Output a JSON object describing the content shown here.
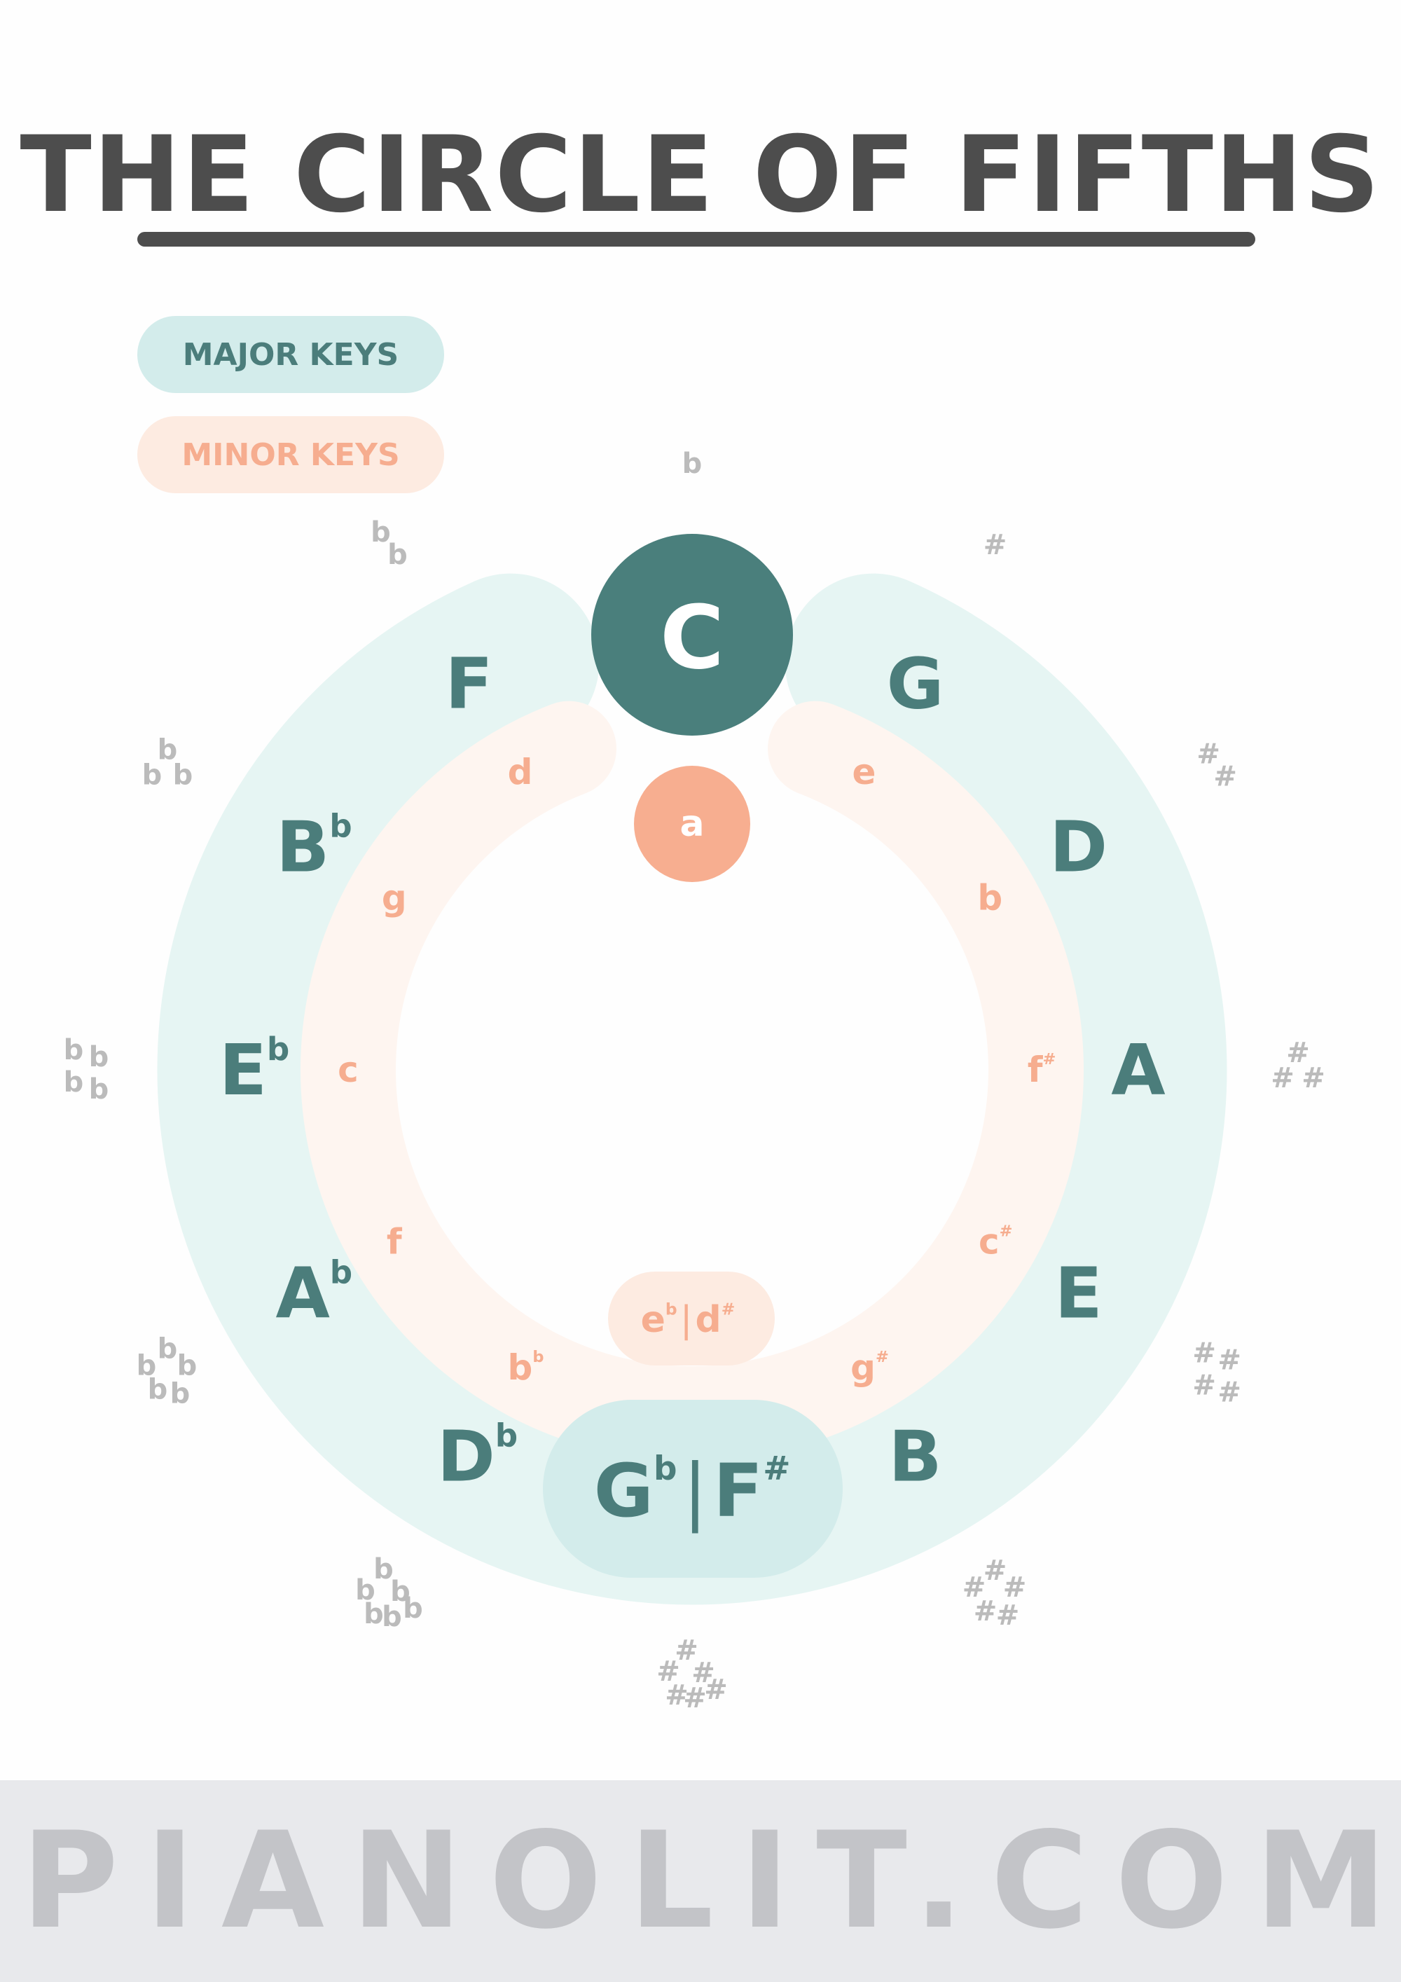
{
  "title": "THE CIRCLE OF FIFTHS",
  "legend": {
    "major": "MAJOR KEYS",
    "minor": "MINOR KEYS"
  },
  "colors": {
    "major_text": "#4b7d7b",
    "major_ring": "#e6f5f3",
    "major_highlight": "#d3eceb",
    "major_circle": "#4a7f7c",
    "minor_text": "#f6ad8f",
    "minor_ring": "#fef5f0",
    "minor_highlight": "#fdebe1",
    "minor_circle": "#f7ae90",
    "signature": "#bbbbbb",
    "title": "#4d4d4d",
    "footer_bg": "#e8e9ec",
    "footer_text": "#c3c4c8"
  },
  "major_keys": [
    {
      "id": "c",
      "letter": "C",
      "acc": ""
    },
    {
      "id": "g",
      "letter": "G",
      "acc": ""
    },
    {
      "id": "d",
      "letter": "D",
      "acc": ""
    },
    {
      "id": "a",
      "letter": "A",
      "acc": ""
    },
    {
      "id": "e",
      "letter": "E",
      "acc": ""
    },
    {
      "id": "b",
      "letter": "B",
      "acc": ""
    },
    {
      "id": "gb-fs",
      "letter": "G",
      "acc": "b",
      "letter2": "F",
      "acc2": "#"
    },
    {
      "id": "db",
      "letter": "D",
      "acc": "b"
    },
    {
      "id": "ab",
      "letter": "A",
      "acc": "b"
    },
    {
      "id": "eb",
      "letter": "E",
      "acc": "b"
    },
    {
      "id": "bb",
      "letter": "B",
      "acc": "b"
    },
    {
      "id": "f",
      "letter": "F",
      "acc": ""
    }
  ],
  "minor_keys": [
    {
      "id": "a",
      "letter": "a",
      "acc": ""
    },
    {
      "id": "e",
      "letter": "e",
      "acc": ""
    },
    {
      "id": "b",
      "letter": "b",
      "acc": ""
    },
    {
      "id": "fs",
      "letter": "f",
      "acc": "#"
    },
    {
      "id": "cs",
      "letter": "c",
      "acc": "#"
    },
    {
      "id": "gs",
      "letter": "g",
      "acc": "#"
    },
    {
      "id": "eb-ds",
      "letter": "e",
      "acc": "b",
      "letter2": "d",
      "acc2": "#"
    },
    {
      "id": "bb",
      "letter": "b",
      "acc": "b"
    },
    {
      "id": "f",
      "letter": "f",
      "acc": ""
    },
    {
      "id": "c",
      "letter": "c",
      "acc": ""
    },
    {
      "id": "g",
      "letter": "g",
      "acc": ""
    },
    {
      "id": "d",
      "letter": "d",
      "acc": ""
    }
  ],
  "signatures": [
    {
      "symbol": "#",
      "count": 1
    },
    {
      "symbol": "#",
      "count": 2
    },
    {
      "symbol": "#",
      "count": 3
    },
    {
      "symbol": "#",
      "count": 4
    },
    {
      "symbol": "#",
      "count": 5
    },
    {
      "symbol": "#",
      "count": 6
    },
    {
      "symbol": "b",
      "count": 6
    },
    {
      "symbol": "b",
      "count": 5
    },
    {
      "symbol": "b",
      "count": 4
    },
    {
      "symbol": "b",
      "count": 3
    },
    {
      "symbol": "b",
      "count": 2
    },
    {
      "symbol": "b",
      "count": 1
    }
  ],
  "footer": "PIANOLIT.COM"
}
